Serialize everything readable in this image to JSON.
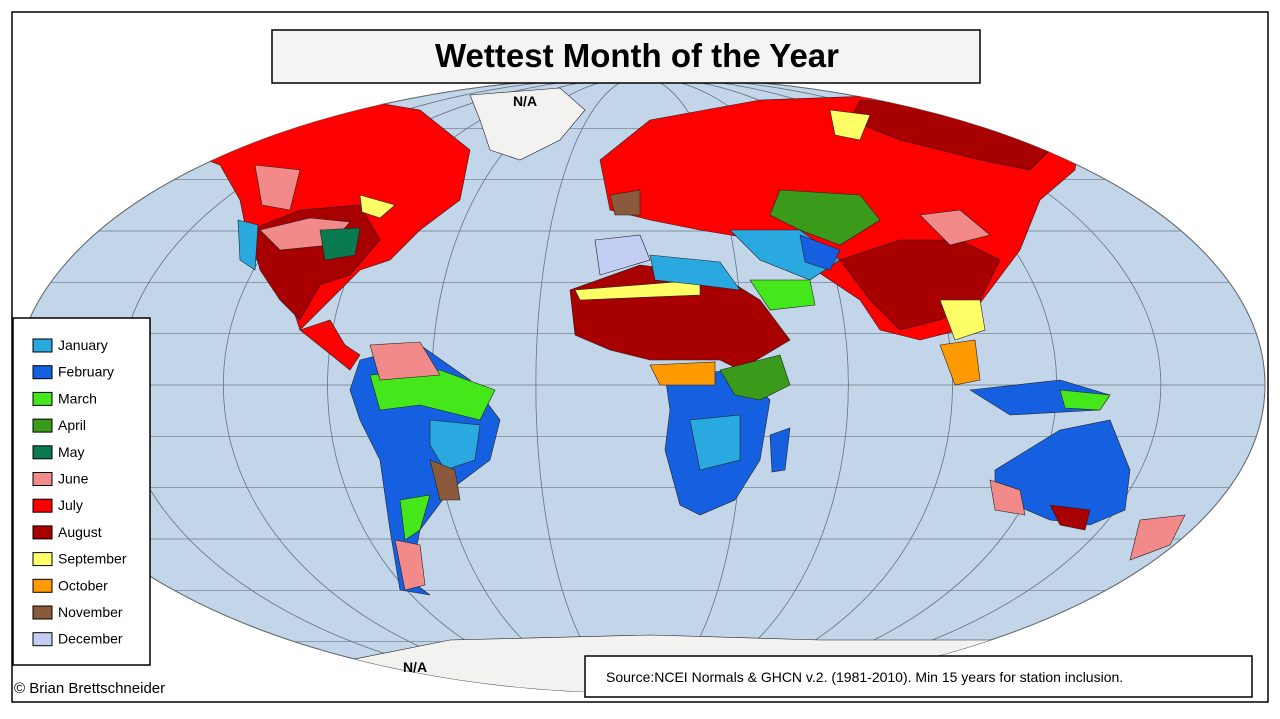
{
  "title": "Wettest Month of the Year",
  "labels": {
    "greenland": "N/A",
    "antarctica": "N/A"
  },
  "legend": {
    "items": [
      {
        "label": "January",
        "color": "#2aa8e0"
      },
      {
        "label": "February",
        "color": "#1560e0"
      },
      {
        "label": "March",
        "color": "#44e81a"
      },
      {
        "label": "April",
        "color": "#3a9a1a"
      },
      {
        "label": "May",
        "color": "#0a7a50"
      },
      {
        "label": "June",
        "color": "#f28a8a"
      },
      {
        "label": "July",
        "color": "#ff0000"
      },
      {
        "label": "August",
        "color": "#a80000"
      },
      {
        "label": "September",
        "color": "#ffff66"
      },
      {
        "label": "October",
        "color": "#ff9900"
      },
      {
        "label": "November",
        "color": "#8b5a3c"
      },
      {
        "label": "December",
        "color": "#c4cef5"
      }
    ]
  },
  "source": "Source:NCEI Normals & GHCN v.2. (1981-2010). Min 15 years for station inclusion.",
  "credit": "© Brian Brettschneider"
}
